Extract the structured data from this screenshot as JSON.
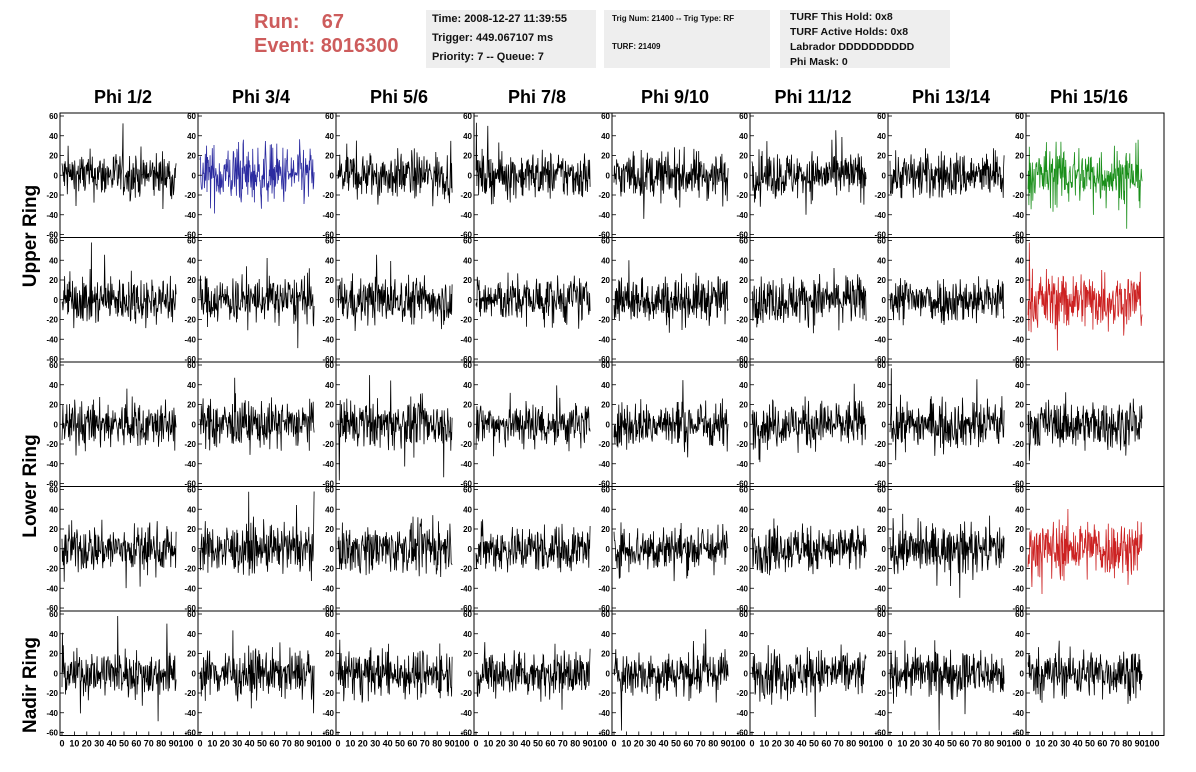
{
  "header": {
    "run_label": "Run:",
    "run_value": "67",
    "event_label": "Event:",
    "event_value": "8016300",
    "time": "Time: 2008-12-27 11:39:55",
    "trigger": "Trigger: 449.067107 ms",
    "priority": "Priority: 7 -- Queue: 7",
    "trig_num": "Trig Num: 21400 -- Trig Type: RF",
    "turf": "TURF: 21409",
    "turf_this_hold": "TURF This Hold: 0x8",
    "turf_active_holds": "TURF Active Holds: 0x8",
    "labrador": "Labrador DDDDDDDDDD",
    "phi_mask": "Phi Mask: 0"
  },
  "columns": [
    "Phi 1/2",
    "Phi 3/4",
    "Phi 5/6",
    "Phi 7/8",
    "Phi 9/10",
    "Phi 11/12",
    "Phi 13/14",
    "Phi 15/16"
  ],
  "rings": [
    {
      "label": "Upper Ring",
      "rows": [
        0,
        1
      ]
    },
    {
      "label": "Lower Ring",
      "rows": [
        2,
        3
      ]
    },
    {
      "label": "Nadir Ring",
      "rows": [
        4
      ]
    }
  ],
  "colors": {
    "default": "#000000",
    "blue": "#2b2ba0",
    "green": "#1a8f1a",
    "red": "#cc2222",
    "header_red": "#cd5c5c",
    "box_bg": "#eeeeee"
  },
  "chart_data": {
    "type": "line",
    "description_grid": "5 rows x 8 columns of waveform panels",
    "xlim": [
      0,
      100
    ],
    "ylim": [
      -60,
      60
    ],
    "x_ticks": [
      0,
      10,
      20,
      30,
      40,
      50,
      60,
      70,
      80,
      90,
      100
    ],
    "x_tick_labels": [
      "0",
      "10",
      "20",
      "30",
      "40",
      "50",
      "60",
      "70",
      "80",
      "90",
      "100"
    ],
    "y_ticks": [
      -60,
      -40,
      -20,
      0,
      20,
      40,
      60
    ],
    "y_tick_labels": [
      "-60",
      "-40",
      "-20",
      "0",
      "20",
      "40",
      "60"
    ],
    "highlighted_panels": [
      {
        "row": 0,
        "col": 1,
        "color": "blue"
      },
      {
        "row": 0,
        "col": 7,
        "color": "green"
      },
      {
        "row": 1,
        "col": 7,
        "color": "red"
      },
      {
        "row": 3,
        "col": 7,
        "color": "red"
      }
    ],
    "amplitude_note": "noise-like waveforms roughly within -50 to 50"
  }
}
